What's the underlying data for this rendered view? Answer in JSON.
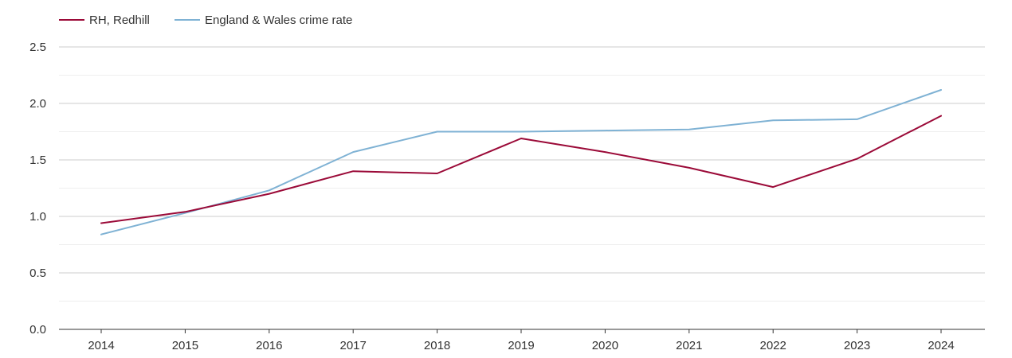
{
  "chart_data": {
    "type": "line",
    "title": "",
    "xlabel": "",
    "ylabel": "",
    "categories": [
      "2014",
      "2015",
      "2016",
      "2017",
      "2018",
      "2019",
      "2020",
      "2021",
      "2022",
      "2023",
      "2024"
    ],
    "y_ticks": [
      "0.0",
      "0.5",
      "1.0",
      "1.5",
      "2.0",
      "2.5"
    ],
    "ylim": [
      0,
      2.5
    ],
    "grid": true,
    "legend_position": "top-left",
    "series": [
      {
        "name": "RH, Redhill",
        "color": "#9b0a38",
        "values": [
          0.94,
          1.04,
          1.2,
          1.4,
          1.38,
          1.69,
          1.57,
          1.43,
          1.26,
          1.51,
          1.89
        ]
      },
      {
        "name": "England & Wales crime rate",
        "color": "#7fb2d4",
        "values": [
          0.84,
          1.03,
          1.23,
          1.57,
          1.75,
          1.75,
          1.76,
          1.77,
          1.85,
          1.86,
          2.12
        ]
      }
    ]
  }
}
